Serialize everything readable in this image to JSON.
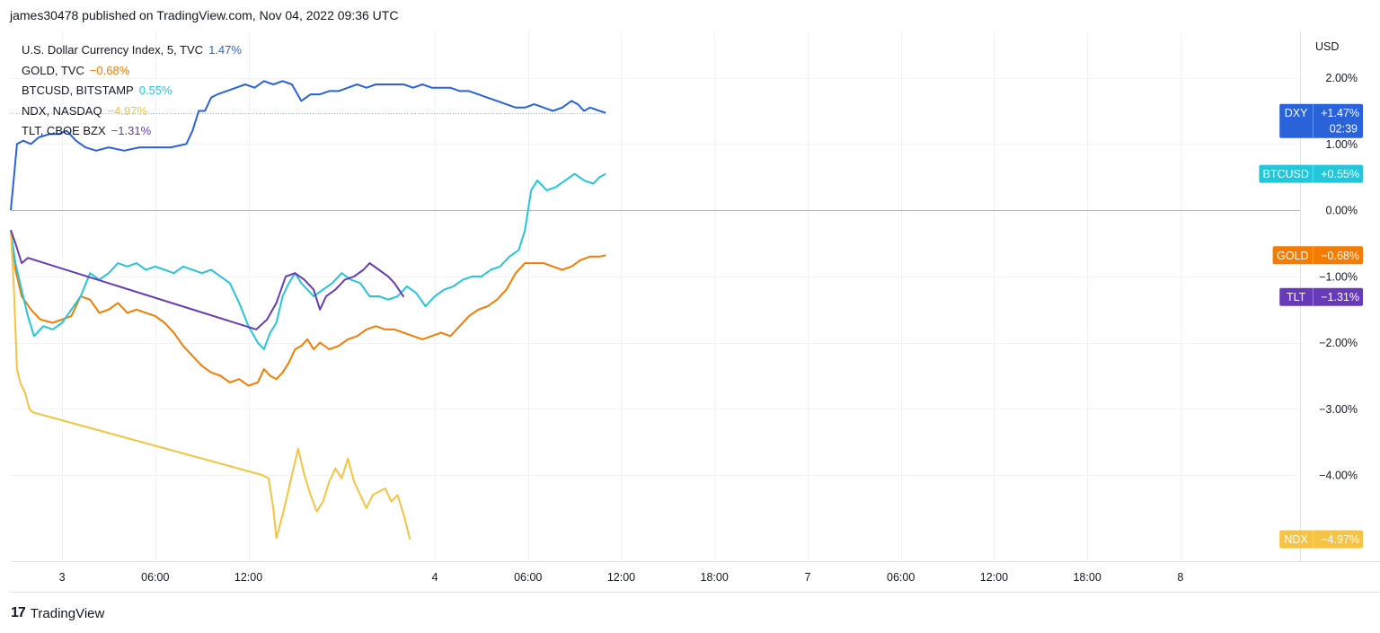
{
  "header": {
    "publisher_line": "james30478 published on TradingView.com, Nov 04, 2022 09:36 UTC"
  },
  "footer": {
    "brand": "TradingView",
    "logo_glyph": "17"
  },
  "chart_data": {
    "type": "line",
    "y_unit": "USD",
    "ylim": [
      -5.3,
      2.7
    ],
    "y_ticks": [
      {
        "value": 2,
        "label": "2.00%"
      },
      {
        "value": 1,
        "label": "1.00%"
      },
      {
        "value": 0,
        "label": "0.00%"
      },
      {
        "value": -1,
        "label": "−1.00%"
      },
      {
        "value": -2,
        "label": "−2.00%"
      },
      {
        "value": -3,
        "label": "−3.00%"
      },
      {
        "value": -4,
        "label": "−4.00%"
      }
    ],
    "x_ticks": [
      {
        "hours": 0,
        "label": "3"
      },
      {
        "hours": 6,
        "label": "06:00"
      },
      {
        "hours": 12,
        "label": "12:00"
      },
      {
        "hours": 24,
        "label": "4"
      },
      {
        "hours": 30,
        "label": "06:00"
      },
      {
        "hours": 36,
        "label": "12:00"
      },
      {
        "hours": 42,
        "label": "18:00"
      },
      {
        "hours": 48,
        "label": "7"
      },
      {
        "hours": 54,
        "label": "06:00"
      },
      {
        "hours": 60,
        "label": "12:00"
      },
      {
        "hours": 66,
        "label": "18:00"
      },
      {
        "hours": 72,
        "label": "8"
      }
    ],
    "xlim_hours": [
      -3.3,
      79.7
    ],
    "series": [
      {
        "name": "U.S. Dollar Currency Index, 5, TVC",
        "tag": "DXY",
        "last_label": "+1.47%",
        "legend_change": "1.47%",
        "countdown": "02:39",
        "color": "#2962d9",
        "last": 1.47,
        "points": [
          [
            -3.3,
            0.0
          ],
          [
            -3.1,
            0.5
          ],
          [
            -2.9,
            1.0
          ],
          [
            -2.5,
            1.05
          ],
          [
            -2.0,
            1.0
          ],
          [
            -1.5,
            1.1
          ],
          [
            -0.8,
            1.15
          ],
          [
            -0.2,
            1.15
          ],
          [
            0.3,
            1.2
          ],
          [
            0.9,
            1.05
          ],
          [
            1.5,
            0.95
          ],
          [
            2.2,
            0.9
          ],
          [
            3.0,
            0.95
          ],
          [
            4.0,
            0.9
          ],
          [
            5.0,
            0.95
          ],
          [
            6.0,
            0.95
          ],
          [
            7.0,
            0.95
          ],
          [
            8.0,
            1.0
          ],
          [
            8.4,
            1.2
          ],
          [
            8.8,
            1.5
          ],
          [
            9.2,
            1.5
          ],
          [
            9.6,
            1.7
          ],
          [
            10.0,
            1.75
          ],
          [
            10.6,
            1.8
          ],
          [
            11.2,
            1.85
          ],
          [
            11.8,
            1.9
          ],
          [
            12.4,
            1.85
          ],
          [
            13.0,
            1.95
          ],
          [
            13.6,
            1.9
          ],
          [
            14.2,
            1.95
          ],
          [
            14.8,
            1.9
          ],
          [
            15.4,
            1.65
          ],
          [
            16.0,
            1.75
          ],
          [
            16.6,
            1.75
          ],
          [
            17.2,
            1.8
          ],
          [
            17.8,
            1.8
          ],
          [
            18.4,
            1.85
          ],
          [
            19.0,
            1.9
          ],
          [
            19.6,
            1.85
          ],
          [
            20.2,
            1.9
          ],
          [
            20.8,
            1.9
          ],
          [
            21.4,
            1.9
          ],
          [
            22.0,
            1.9
          ],
          [
            22.6,
            1.85
          ],
          [
            23.2,
            1.9
          ],
          [
            23.8,
            1.85
          ],
          [
            24.4,
            1.85
          ],
          [
            25.0,
            1.85
          ],
          [
            25.6,
            1.8
          ],
          [
            26.2,
            1.8
          ],
          [
            26.8,
            1.75
          ],
          [
            27.4,
            1.7
          ],
          [
            28.0,
            1.65
          ],
          [
            28.6,
            1.6
          ],
          [
            29.2,
            1.55
          ],
          [
            29.8,
            1.55
          ],
          [
            30.4,
            1.6
          ],
          [
            31.0,
            1.55
          ],
          [
            31.6,
            1.5
          ],
          [
            32.2,
            1.55
          ],
          [
            32.8,
            1.65
          ],
          [
            33.2,
            1.6
          ],
          [
            33.6,
            1.5
          ],
          [
            34.0,
            1.55
          ],
          [
            34.6,
            1.5
          ],
          [
            35.0,
            1.47
          ]
        ]
      },
      {
        "name": "GOLD, TVC",
        "tag": "GOLD",
        "last_label": "−0.68%",
        "legend_change": "−0.68%",
        "color": "#f57c00",
        "last": -0.68,
        "points": [
          [
            -3.3,
            -0.3
          ],
          [
            -3.0,
            -0.9
          ],
          [
            -2.6,
            -1.3
          ],
          [
            -2.0,
            -1.5
          ],
          [
            -1.4,
            -1.65
          ],
          [
            -0.6,
            -1.7
          ],
          [
            0.0,
            -1.65
          ],
          [
            0.6,
            -1.6
          ],
          [
            1.2,
            -1.3
          ],
          [
            1.8,
            -1.35
          ],
          [
            2.4,
            -1.55
          ],
          [
            3.0,
            -1.5
          ],
          [
            3.6,
            -1.4
          ],
          [
            4.2,
            -1.55
          ],
          [
            4.8,
            -1.5
          ],
          [
            5.4,
            -1.55
          ],
          [
            6.0,
            -1.6
          ],
          [
            6.6,
            -1.7
          ],
          [
            7.2,
            -1.85
          ],
          [
            7.8,
            -2.05
          ],
          [
            8.4,
            -2.2
          ],
          [
            9.0,
            -2.35
          ],
          [
            9.6,
            -2.45
          ],
          [
            10.2,
            -2.5
          ],
          [
            10.8,
            -2.6
          ],
          [
            11.4,
            -2.55
          ],
          [
            12.0,
            -2.65
          ],
          [
            12.6,
            -2.6
          ],
          [
            13.0,
            -2.4
          ],
          [
            13.4,
            -2.5
          ],
          [
            13.8,
            -2.55
          ],
          [
            14.2,
            -2.45
          ],
          [
            14.6,
            -2.3
          ],
          [
            15.0,
            -2.1
          ],
          [
            15.4,
            -2.05
          ],
          [
            15.8,
            -1.95
          ],
          [
            16.2,
            -2.1
          ],
          [
            16.6,
            -2.0
          ],
          [
            17.2,
            -2.1
          ],
          [
            17.8,
            -2.05
          ],
          [
            18.4,
            -1.95
          ],
          [
            19.0,
            -1.9
          ],
          [
            19.6,
            -1.8
          ],
          [
            20.2,
            -1.75
          ],
          [
            20.8,
            -1.8
          ],
          [
            21.4,
            -1.8
          ],
          [
            22.0,
            -1.85
          ],
          [
            22.6,
            -1.9
          ],
          [
            23.2,
            -1.95
          ],
          [
            23.8,
            -1.9
          ],
          [
            24.4,
            -1.85
          ],
          [
            25.0,
            -1.9
          ],
          [
            25.6,
            -1.75
          ],
          [
            26.2,
            -1.6
          ],
          [
            26.8,
            -1.5
          ],
          [
            27.4,
            -1.45
          ],
          [
            28.0,
            -1.35
          ],
          [
            28.6,
            -1.2
          ],
          [
            29.2,
            -0.95
          ],
          [
            29.8,
            -0.8
          ],
          [
            30.4,
            -0.8
          ],
          [
            31.0,
            -0.8
          ],
          [
            31.6,
            -0.85
          ],
          [
            32.2,
            -0.9
          ],
          [
            32.8,
            -0.85
          ],
          [
            33.4,
            -0.75
          ],
          [
            34.0,
            -0.7
          ],
          [
            34.6,
            -0.7
          ],
          [
            35.0,
            -0.68
          ]
        ]
      },
      {
        "name": "BTCUSD, BITSTAMP",
        "tag": "BTCUSD",
        "last_label": "+0.55%",
        "legend_change": "0.55%",
        "color": "#26c6da",
        "last": 0.55,
        "points": [
          [
            -3.3,
            -0.3
          ],
          [
            -3.0,
            -0.8
          ],
          [
            -2.6,
            -1.2
          ],
          [
            -2.2,
            -1.6
          ],
          [
            -1.8,
            -1.9
          ],
          [
            -1.2,
            -1.75
          ],
          [
            -0.6,
            -1.8
          ],
          [
            0.0,
            -1.7
          ],
          [
            0.6,
            -1.5
          ],
          [
            1.2,
            -1.3
          ],
          [
            1.8,
            -0.95
          ],
          [
            2.4,
            -1.05
          ],
          [
            3.0,
            -0.95
          ],
          [
            3.6,
            -0.8
          ],
          [
            4.2,
            -0.85
          ],
          [
            4.8,
            -0.8
          ],
          [
            5.4,
            -0.9
          ],
          [
            6.0,
            -0.85
          ],
          [
            6.6,
            -0.9
          ],
          [
            7.2,
            -0.95
          ],
          [
            7.8,
            -0.85
          ],
          [
            8.4,
            -0.9
          ],
          [
            9.0,
            -0.95
          ],
          [
            9.6,
            -0.9
          ],
          [
            10.2,
            -1.0
          ],
          [
            10.8,
            -1.1
          ],
          [
            11.4,
            -1.4
          ],
          [
            12.0,
            -1.75
          ],
          [
            12.6,
            -2.0
          ],
          [
            13.0,
            -2.1
          ],
          [
            13.4,
            -1.85
          ],
          [
            13.8,
            -1.7
          ],
          [
            14.2,
            -1.3
          ],
          [
            14.6,
            -1.1
          ],
          [
            15.0,
            -0.95
          ],
          [
            15.4,
            -1.1
          ],
          [
            15.8,
            -1.2
          ],
          [
            16.2,
            -1.3
          ],
          [
            16.8,
            -1.2
          ],
          [
            17.4,
            -1.1
          ],
          [
            18.0,
            -0.95
          ],
          [
            18.6,
            -1.05
          ],
          [
            19.2,
            -1.1
          ],
          [
            19.8,
            -1.3
          ],
          [
            20.4,
            -1.3
          ],
          [
            21.0,
            -1.35
          ],
          [
            21.6,
            -1.3
          ],
          [
            22.2,
            -1.15
          ],
          [
            22.8,
            -1.25
          ],
          [
            23.4,
            -1.45
          ],
          [
            24.0,
            -1.3
          ],
          [
            24.6,
            -1.2
          ],
          [
            25.2,
            -1.15
          ],
          [
            25.8,
            -1.05
          ],
          [
            26.4,
            -1.0
          ],
          [
            27.0,
            -1.0
          ],
          [
            27.6,
            -0.9
          ],
          [
            28.2,
            -0.85
          ],
          [
            28.8,
            -0.7
          ],
          [
            29.4,
            -0.6
          ],
          [
            29.8,
            -0.3
          ],
          [
            30.2,
            0.3
          ],
          [
            30.6,
            0.45
          ],
          [
            31.2,
            0.3
          ],
          [
            31.8,
            0.35
          ],
          [
            32.4,
            0.45
          ],
          [
            33.0,
            0.55
          ],
          [
            33.6,
            0.45
          ],
          [
            34.2,
            0.4
          ],
          [
            34.6,
            0.5
          ],
          [
            35.0,
            0.55
          ]
        ]
      },
      {
        "name": "NDX, NASDAQ",
        "tag": "NDX",
        "last_label": "−4.97%",
        "legend_change": "−4.97%",
        "color": "#f6c342",
        "last": -4.97,
        "points": [
          [
            -3.3,
            -0.3
          ],
          [
            -3.1,
            -1.2
          ],
          [
            -2.9,
            -2.4
          ],
          [
            -2.7,
            -2.6
          ],
          [
            -2.4,
            -2.75
          ],
          [
            -2.1,
            -3.0
          ],
          [
            -1.9,
            -3.05
          ],
          [
            12.9,
            -4.0
          ],
          [
            13.3,
            -4.05
          ],
          [
            13.6,
            -4.5
          ],
          [
            13.8,
            -4.95
          ],
          [
            14.2,
            -4.6
          ],
          [
            14.6,
            -4.2
          ],
          [
            15.0,
            -3.8
          ],
          [
            15.2,
            -3.6
          ],
          [
            15.6,
            -4.0
          ],
          [
            16.0,
            -4.3
          ],
          [
            16.4,
            -4.55
          ],
          [
            16.8,
            -4.4
          ],
          [
            17.2,
            -4.1
          ],
          [
            17.6,
            -3.9
          ],
          [
            18.0,
            -4.05
          ],
          [
            18.4,
            -3.75
          ],
          [
            18.8,
            -4.1
          ],
          [
            19.2,
            -4.3
          ],
          [
            19.6,
            -4.5
          ],
          [
            20.0,
            -4.3
          ],
          [
            20.4,
            -4.25
          ],
          [
            20.8,
            -4.2
          ],
          [
            21.2,
            -4.4
          ],
          [
            21.6,
            -4.3
          ],
          [
            22.0,
            -4.6
          ],
          [
            22.4,
            -4.97
          ]
        ]
      },
      {
        "name": "TLT, CBOE BZX",
        "tag": "TLT",
        "last_label": "−1.31%",
        "legend_change": "−1.31%",
        "color": "#673ab7",
        "last": -1.31,
        "points": [
          [
            -3.3,
            -0.3
          ],
          [
            -3.0,
            -0.5
          ],
          [
            -2.6,
            -0.8
          ],
          [
            -2.2,
            -0.72
          ],
          [
            12.5,
            -1.8
          ],
          [
            13.2,
            -1.65
          ],
          [
            13.8,
            -1.4
          ],
          [
            14.4,
            -1.0
          ],
          [
            15.0,
            -0.95
          ],
          [
            15.6,
            -1.05
          ],
          [
            16.2,
            -1.2
          ],
          [
            16.6,
            -1.5
          ],
          [
            17.0,
            -1.3
          ],
          [
            17.6,
            -1.2
          ],
          [
            18.2,
            -1.05
          ],
          [
            18.8,
            -1.0
          ],
          [
            19.4,
            -0.9
          ],
          [
            19.8,
            -0.8
          ],
          [
            20.4,
            -0.9
          ],
          [
            21.0,
            -1.0
          ],
          [
            21.4,
            -1.1
          ],
          [
            22.0,
            -1.31
          ]
        ]
      }
    ]
  }
}
